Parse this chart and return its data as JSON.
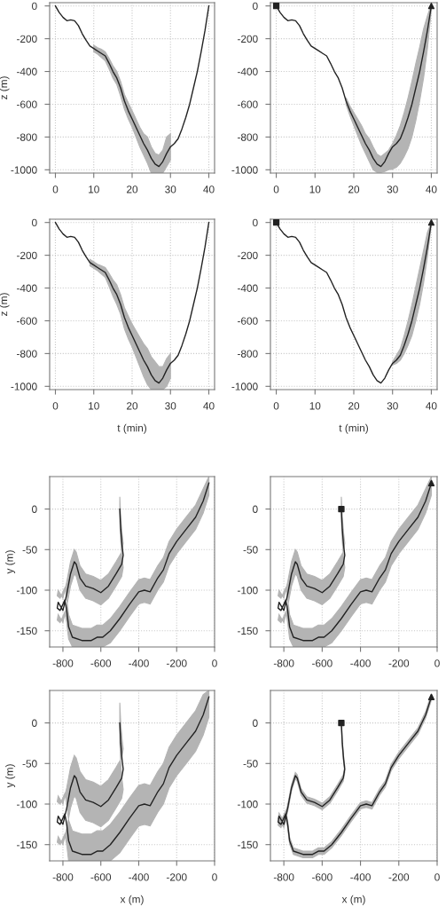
{
  "chart_data": [
    {
      "type": "line",
      "ylabel": "z (m)",
      "xlim": [
        -1.5,
        41.5
      ],
      "ylim": [
        -1020,
        20
      ],
      "xticks": [
        0,
        10,
        20,
        30,
        40
      ],
      "yticks": [
        -1000,
        -800,
        -600,
        -400,
        -200,
        0
      ],
      "grid": true,
      "series": [
        {
          "type": "line",
          "color": "#222222",
          "x": [
            0,
            1,
            2,
            3,
            4,
            5,
            6,
            7,
            8,
            9,
            10,
            11,
            12,
            13,
            14,
            15,
            16,
            17,
            18,
            19,
            20,
            21,
            22,
            23,
            24,
            25,
            26,
            27,
            28,
            29,
            30,
            31,
            32,
            33,
            34,
            35,
            36,
            37,
            38,
            39,
            40
          ],
          "values": [
            0,
            -40,
            -70,
            -90,
            -85,
            -90,
            -120,
            -170,
            -210,
            -245,
            -260,
            -275,
            -290,
            -305,
            -350,
            -400,
            -440,
            -500,
            -580,
            -640,
            -690,
            -740,
            -790,
            -840,
            -880,
            -930,
            -965,
            -980,
            -950,
            -900,
            -860,
            -840,
            -810,
            -750,
            -680,
            -600,
            -500,
            -400,
            -280,
            -150,
            0
          ],
          "lower": [
            null,
            null,
            null,
            null,
            null,
            null,
            null,
            null,
            null,
            null,
            -280,
            -295,
            -315,
            -335,
            -385,
            -440,
            -480,
            -550,
            -630,
            -690,
            -740,
            -800,
            -860,
            -910,
            -960,
            -1020,
            -1020,
            -1020,
            -1020,
            -980,
            -940,
            null,
            null,
            null,
            null,
            null,
            null,
            null,
            null,
            null,
            null
          ],
          "upper": [
            null,
            null,
            null,
            null,
            null,
            null,
            null,
            null,
            null,
            null,
            -240,
            -255,
            -265,
            -280,
            -320,
            -365,
            -400,
            -460,
            -540,
            -590,
            -640,
            -690,
            -740,
            -780,
            -800,
            -860,
            -900,
            -910,
            -880,
            -800,
            -780,
            null,
            null,
            null,
            null,
            null,
            null,
            null,
            null,
            null,
            null
          ]
        }
      ]
    },
    {
      "type": "line",
      "xlim": [
        -1.5,
        41.5
      ],
      "ylim": [
        -1020,
        20
      ],
      "xticks": [
        0,
        10,
        20,
        30,
        40
      ],
      "yticks": [
        -1000,
        -800,
        -600,
        -400,
        -200,
        0
      ],
      "grid": true,
      "series": [
        {
          "type": "line",
          "color": "#222222",
          "x": [
            0,
            1,
            2,
            3,
            4,
            5,
            6,
            7,
            8,
            9,
            10,
            11,
            12,
            13,
            14,
            15,
            16,
            17,
            18,
            19,
            20,
            21,
            22,
            23,
            24,
            25,
            26,
            27,
            28,
            29,
            30,
            31,
            32,
            33,
            34,
            35,
            36,
            37,
            38,
            39,
            40
          ],
          "values": [
            0,
            -40,
            -70,
            -90,
            -85,
            -90,
            -120,
            -170,
            -210,
            -245,
            -260,
            -275,
            -290,
            -305,
            -350,
            -400,
            -440,
            -500,
            -580,
            -640,
            -690,
            -740,
            -790,
            -840,
            -880,
            -930,
            -965,
            -980,
            -950,
            -900,
            -860,
            -840,
            -810,
            -750,
            -680,
            -600,
            -500,
            -400,
            -280,
            -150,
            0
          ],
          "lower": [
            null,
            null,
            null,
            null,
            null,
            null,
            null,
            null,
            null,
            null,
            null,
            null,
            null,
            null,
            null,
            null,
            null,
            null,
            -600,
            -670,
            -730,
            -790,
            -850,
            -900,
            -950,
            -1000,
            -1015,
            -1015,
            -1010,
            -1000,
            -995,
            -985,
            -960,
            -920,
            -870,
            -800,
            -700,
            -580,
            -440,
            -260,
            -20
          ],
          "upper": [
            null,
            null,
            null,
            null,
            null,
            null,
            null,
            null,
            null,
            null,
            null,
            null,
            null,
            null,
            null,
            null,
            null,
            null,
            -560,
            -610,
            -650,
            -690,
            -730,
            -780,
            -810,
            -860,
            -905,
            -920,
            -900,
            -880,
            -840,
            -790,
            -730,
            -650,
            -560,
            -460,
            -350,
            -250,
            -140,
            -60,
            10
          ]
        },
        {
          "type": "scatter",
          "marker": "square",
          "color": "#222222",
          "x": [
            0
          ],
          "values": [
            0
          ]
        },
        {
          "type": "scatter",
          "marker": "triangle",
          "color": "#222222",
          "x": [
            40
          ],
          "values": [
            0
          ]
        }
      ]
    },
    {
      "type": "line",
      "ylabel": "z (m)",
      "xlabel": "t (min)",
      "xlim": [
        -1.5,
        41.5
      ],
      "ylim": [
        -1020,
        20
      ],
      "xticks": [
        0,
        10,
        20,
        30,
        40
      ],
      "yticks": [
        -1000,
        -800,
        -600,
        -400,
        -200,
        0
      ],
      "grid": true,
      "series": [
        {
          "type": "line",
          "color": "#222222",
          "x": [
            0,
            1,
            2,
            3,
            4,
            5,
            6,
            7,
            8,
            9,
            10,
            11,
            12,
            13,
            14,
            15,
            16,
            17,
            18,
            19,
            20,
            21,
            22,
            23,
            24,
            25,
            26,
            27,
            28,
            29,
            30,
            31,
            32,
            33,
            34,
            35,
            36,
            37,
            38,
            39,
            40
          ],
          "values": [
            0,
            -40,
            -70,
            -90,
            -85,
            -90,
            -120,
            -170,
            -210,
            -245,
            -260,
            -275,
            -290,
            -305,
            -350,
            -400,
            -440,
            -500,
            -580,
            -640,
            -690,
            -740,
            -790,
            -840,
            -880,
            -930,
            -965,
            -980,
            -950,
            -900,
            -860,
            -840,
            -810,
            -750,
            -680,
            -600,
            -500,
            -400,
            -280,
            -150,
            0
          ],
          "lower": [
            null,
            null,
            null,
            null,
            null,
            null,
            null,
            null,
            null,
            -265,
            -280,
            -295,
            -315,
            -335,
            -390,
            -450,
            -500,
            -560,
            -650,
            -710,
            -760,
            -820,
            -880,
            -940,
            -990,
            -1020,
            -1020,
            -1020,
            -1020,
            -1000,
            -950,
            null,
            null,
            null,
            null,
            null,
            null,
            null,
            null,
            null,
            null
          ],
          "upper": [
            null,
            null,
            null,
            null,
            null,
            null,
            null,
            null,
            null,
            -225,
            -240,
            -255,
            -265,
            -275,
            -310,
            -350,
            -380,
            -440,
            -520,
            -570,
            -620,
            -660,
            -700,
            -740,
            -770,
            -820,
            -850,
            -880,
            -880,
            -830,
            -800,
            null,
            null,
            null,
            null,
            null,
            null,
            null,
            null,
            null,
            null
          ]
        }
      ]
    },
    {
      "type": "line",
      "xlabel": "t (min)",
      "xlim": [
        -1.5,
        41.5
      ],
      "ylim": [
        -1020,
        20
      ],
      "xticks": [
        0,
        10,
        20,
        30,
        40
      ],
      "yticks": [
        -1000,
        -800,
        -600,
        -400,
        -200,
        0
      ],
      "grid": true,
      "series": [
        {
          "type": "line",
          "color": "#222222",
          "x": [
            0,
            1,
            2,
            3,
            4,
            5,
            6,
            7,
            8,
            9,
            10,
            11,
            12,
            13,
            14,
            15,
            16,
            17,
            18,
            19,
            20,
            21,
            22,
            23,
            24,
            25,
            26,
            27,
            28,
            29,
            30,
            31,
            32,
            33,
            34,
            35,
            36,
            37,
            38,
            39,
            40
          ],
          "values": [
            0,
            -40,
            -70,
            -90,
            -85,
            -90,
            -120,
            -170,
            -210,
            -245,
            -260,
            -275,
            -290,
            -305,
            -350,
            -400,
            -440,
            -500,
            -580,
            -640,
            -690,
            -740,
            -790,
            -840,
            -880,
            -930,
            -965,
            -980,
            -950,
            -900,
            -860,
            -840,
            -810,
            -750,
            -680,
            -600,
            -500,
            -400,
            -280,
            -150,
            0
          ],
          "lower": [
            null,
            null,
            null,
            null,
            null,
            null,
            null,
            null,
            null,
            null,
            null,
            null,
            null,
            null,
            null,
            null,
            null,
            null,
            null,
            null,
            null,
            null,
            null,
            null,
            null,
            null,
            null,
            null,
            null,
            null,
            -870,
            -860,
            -840,
            -800,
            -750,
            -690,
            -600,
            -500,
            -370,
            -210,
            -10
          ],
          "upper": [
            null,
            null,
            null,
            null,
            null,
            null,
            null,
            null,
            null,
            null,
            null,
            null,
            null,
            null,
            null,
            null,
            null,
            null,
            null,
            null,
            null,
            null,
            null,
            null,
            null,
            null,
            null,
            null,
            null,
            null,
            -850,
            -810,
            -770,
            -690,
            -600,
            -500,
            -390,
            -280,
            -170,
            -60,
            0
          ]
        },
        {
          "type": "scatter",
          "marker": "square",
          "color": "#222222",
          "x": [
            0
          ],
          "values": [
            0
          ]
        },
        {
          "type": "scatter",
          "marker": "triangle",
          "color": "#222222",
          "x": [
            40
          ],
          "values": [
            0
          ]
        }
      ]
    },
    {
      "type": "line",
      "ylabel": "y (m)",
      "xlim": [
        -870,
        0
      ],
      "ylim": [
        -170,
        40
      ],
      "xticks": [
        -800,
        -600,
        -400,
        -200,
        0
      ],
      "yticks": [
        -150,
        -100,
        -50,
        0
      ],
      "grid": true,
      "series": [
        {
          "type": "line",
          "color": "#222222",
          "x": [
            -500,
            -495,
            -488,
            -482,
            -490,
            -500,
            -520,
            -560,
            -600,
            -640,
            -680,
            -710,
            -730,
            -740,
            -760,
            -780,
            -800,
            -825,
            -830,
            -815,
            -790,
            -780,
            -770,
            -750,
            -700,
            -650,
            -620,
            -590,
            -550,
            -500,
            -450,
            -400,
            -370,
            -340,
            -300,
            -270,
            -240,
            -200,
            -150,
            -100,
            -60,
            -30
          ],
          "values": [
            0,
            -25,
            -45,
            -57,
            -68,
            -72,
            -80,
            -95,
            -103,
            -98,
            -95,
            -85,
            -68,
            -65,
            -80,
            -105,
            -125,
            -115,
            -122,
            -125,
            -112,
            -125,
            -145,
            -158,
            -162,
            -162,
            -158,
            -158,
            -150,
            -135,
            -118,
            -102,
            -100,
            -102,
            -85,
            -75,
            -55,
            -40,
            -25,
            -10,
            10,
            32
          ],
          "lower": [
            -15,
            -40,
            -60,
            -72,
            -83,
            -87,
            -95,
            -110,
            -118,
            -113,
            -110,
            -100,
            -83,
            -80,
            -95,
            -120,
            -140,
            -130,
            -137,
            -140,
            -127,
            -140,
            -160,
            -170,
            -170,
            -170,
            -170,
            -170,
            -165,
            -150,
            -133,
            -117,
            -115,
            -117,
            -100,
            -90,
            -70,
            -55,
            -40,
            -25,
            -5,
            17
          ],
          "upper": [
            15,
            -10,
            -30,
            -42,
            -53,
            -57,
            -65,
            -80,
            -88,
            -83,
            -80,
            -70,
            -53,
            -50,
            -65,
            -90,
            -110,
            -100,
            -107,
            -110,
            -97,
            -110,
            -130,
            -143,
            -147,
            -147,
            -143,
            -143,
            -135,
            -120,
            -103,
            -87,
            -85,
            -87,
            -70,
            -60,
            -40,
            -25,
            -10,
            5,
            25,
            40
          ]
        }
      ]
    },
    {
      "type": "line",
      "xlim": [
        -870,
        0
      ],
      "ylim": [
        -170,
        40
      ],
      "xticks": [
        -800,
        -600,
        -400,
        -200,
        0
      ],
      "yticks": [
        -150,
        -100,
        -50,
        0
      ],
      "grid": true,
      "series": [
        {
          "type": "line",
          "color": "#222222",
          "x": [
            -500,
            -495,
            -488,
            -482,
            -490,
            -500,
            -520,
            -560,
            -600,
            -640,
            -680,
            -710,
            -730,
            -740,
            -760,
            -780,
            -800,
            -825,
            -830,
            -815,
            -790,
            -780,
            -770,
            -750,
            -700,
            -650,
            -620,
            -590,
            -550,
            -500,
            -450,
            -400,
            -370,
            -340,
            -300,
            -270,
            -240,
            -200,
            -150,
            -100,
            -60,
            -30
          ],
          "values": [
            0,
            -25,
            -45,
            -57,
            -68,
            -72,
            -80,
            -95,
            -103,
            -98,
            -95,
            -85,
            -68,
            -65,
            -80,
            -105,
            -125,
            -115,
            -122,
            -125,
            -112,
            -125,
            -145,
            -158,
            -162,
            -162,
            -158,
            -158,
            -150,
            -135,
            -118,
            -102,
            -100,
            -102,
            -85,
            -75,
            -55,
            -40,
            -25,
            -10,
            10,
            32
          ],
          "lower": [
            -15,
            -40,
            -60,
            -72,
            -83,
            -87,
            -95,
            -110,
            -118,
            -113,
            -110,
            -100,
            -83,
            -80,
            -95,
            -120,
            -140,
            -130,
            -137,
            -140,
            -127,
            -140,
            -160,
            -170,
            -170,
            -170,
            -170,
            -170,
            -165,
            -150,
            -133,
            -117,
            -115,
            -117,
            -100,
            -90,
            -70,
            -55,
            -40,
            -25,
            -5,
            17
          ],
          "upper": [
            15,
            -10,
            -30,
            -42,
            -53,
            -57,
            -65,
            -80,
            -88,
            -83,
            -80,
            -70,
            -53,
            -50,
            -65,
            -90,
            -110,
            -100,
            -107,
            -110,
            -97,
            -110,
            -130,
            -143,
            -147,
            -147,
            -143,
            -143,
            -135,
            -120,
            -103,
            -87,
            -85,
            -87,
            -70,
            -60,
            -40,
            -25,
            -10,
            5,
            25,
            40
          ]
        },
        {
          "type": "scatter",
          "marker": "square",
          "color": "#222222",
          "x": [
            -500
          ],
          "values": [
            0
          ]
        },
        {
          "type": "scatter",
          "marker": "triangle",
          "color": "#222222",
          "x": [
            -30
          ],
          "values": [
            32
          ]
        }
      ]
    },
    {
      "type": "line",
      "ylabel": "y (m)",
      "xlabel": "x (m)",
      "xlim": [
        -870,
        0
      ],
      "ylim": [
        -170,
        40
      ],
      "xticks": [
        -800,
        -600,
        -400,
        -200,
        0
      ],
      "yticks": [
        -150,
        -100,
        -50,
        0
      ],
      "grid": true,
      "series": [
        {
          "type": "line",
          "color": "#222222",
          "x": [
            -500,
            -495,
            -488,
            -482,
            -490,
            -500,
            -520,
            -560,
            -600,
            -640,
            -680,
            -710,
            -730,
            -740,
            -760,
            -780,
            -800,
            -825,
            -830,
            -815,
            -790,
            -780,
            -770,
            -750,
            -700,
            -650,
            -620,
            -590,
            -550,
            -500,
            -450,
            -400,
            -370,
            -340,
            -300,
            -270,
            -240,
            -200,
            -150,
            -100,
            -60,
            -30
          ],
          "values": [
            0,
            -25,
            -45,
            -57,
            -68,
            -72,
            -80,
            -95,
            -103,
            -98,
            -95,
            -85,
            -68,
            -65,
            -80,
            -105,
            -125,
            -115,
            -122,
            -125,
            -112,
            -125,
            -145,
            -158,
            -162,
            -162,
            -158,
            -158,
            -150,
            -135,
            -118,
            -102,
            -100,
            -102,
            -85,
            -75,
            -55,
            -40,
            -25,
            -10,
            10,
            32
          ],
          "lower": [
            -25,
            -50,
            -70,
            -82,
            -93,
            -97,
            -105,
            -120,
            -128,
            -123,
            -120,
            -110,
            -93,
            -90,
            -105,
            -130,
            -150,
            -140,
            -147,
            -150,
            -137,
            -150,
            -170,
            -170,
            -170,
            -170,
            -170,
            -170,
            -170,
            -160,
            -143,
            -127,
            -125,
            -127,
            -110,
            -100,
            -80,
            -65,
            -50,
            -35,
            -15,
            7
          ],
          "upper": [
            25,
            0,
            -20,
            -32,
            -43,
            -47,
            -55,
            -70,
            -78,
            -73,
            -70,
            -60,
            -43,
            -40,
            -55,
            -80,
            -100,
            -90,
            -97,
            -100,
            -87,
            -100,
            -120,
            -133,
            -137,
            -137,
            -133,
            -133,
            -125,
            -110,
            -93,
            -77,
            -75,
            -77,
            -60,
            -50,
            -30,
            -15,
            0,
            15,
            35,
            40
          ]
        }
      ]
    },
    {
      "type": "line",
      "xlabel": "x (m)",
      "xlim": [
        -870,
        0
      ],
      "ylim": [
        -170,
        40
      ],
      "xticks": [
        -800,
        -600,
        -400,
        -200,
        0
      ],
      "yticks": [
        -150,
        -100,
        -50,
        0
      ],
      "grid": true,
      "series": [
        {
          "type": "line",
          "color": "#222222",
          "x": [
            -500,
            -495,
            -488,
            -482,
            -490,
            -500,
            -520,
            -560,
            -600,
            -640,
            -680,
            -710,
            -730,
            -740,
            -760,
            -780,
            -800,
            -825,
            -830,
            -815,
            -790,
            -780,
            -770,
            -750,
            -700,
            -650,
            -620,
            -590,
            -550,
            -500,
            -450,
            -400,
            -370,
            -340,
            -300,
            -270,
            -240,
            -200,
            -150,
            -100,
            -60,
            -30
          ],
          "values": [
            0,
            -25,
            -45,
            -57,
            -68,
            -72,
            -80,
            -95,
            -103,
            -98,
            -95,
            -85,
            -68,
            -65,
            -80,
            -105,
            -125,
            -115,
            -122,
            -125,
            -112,
            -125,
            -145,
            -158,
            -162,
            -162,
            -158,
            -158,
            -150,
            -135,
            -118,
            -102,
            -100,
            -102,
            -85,
            -75,
            -55,
            -40,
            -25,
            -10,
            10,
            32
          ],
          "lower": [
            -4,
            -29,
            -49,
            -61,
            -72,
            -76,
            -84,
            -99,
            -107,
            -102,
            -99,
            -89,
            -72,
            -69,
            -84,
            -109,
            -129,
            -119,
            -126,
            -129,
            -116,
            -129,
            -149,
            -162,
            -166,
            -166,
            -162,
            -162,
            -154,
            -139,
            -122,
            -106,
            -104,
            -106,
            -89,
            -79,
            -59,
            -44,
            -29,
            -14,
            6,
            28
          ],
          "upper": [
            4,
            -21,
            -41,
            -53,
            -64,
            -68,
            -76,
            -91,
            -99,
            -94,
            -91,
            -81,
            -64,
            -61,
            -76,
            -101,
            -121,
            -111,
            -118,
            -121,
            -108,
            -121,
            -141,
            -154,
            -158,
            -158,
            -154,
            -154,
            -146,
            -131,
            -114,
            -98,
            -96,
            -98,
            -81,
            -71,
            -51,
            -36,
            -21,
            -6,
            14,
            36
          ]
        },
        {
          "type": "scatter",
          "marker": "square",
          "color": "#222222",
          "x": [
            -500
          ],
          "values": [
            0
          ]
        },
        {
          "type": "scatter",
          "marker": "triangle",
          "color": "#222222",
          "x": [
            -30
          ],
          "values": [
            32
          ]
        }
      ]
    }
  ]
}
